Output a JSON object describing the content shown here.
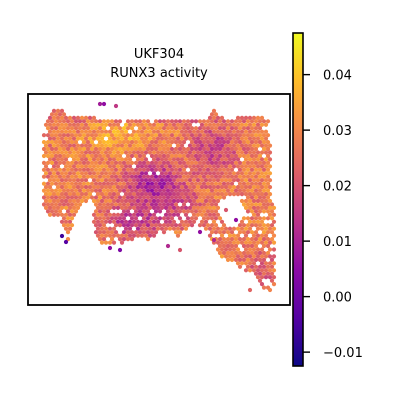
{
  "chart_data": {
    "type": "scatter",
    "title_line1": "UKF304",
    "title_line2": "RUNX3 activity",
    "xlabel": "",
    "ylabel": "",
    "colormap": "plasma",
    "grid": false,
    "colorbar": {
      "range": [
        -0.0125,
        0.0475
      ],
      "ticks": [
        -0.01,
        0.0,
        0.01,
        0.02,
        0.03,
        0.04
      ],
      "tick_labels": [
        "−0.01",
        "0.00",
        "0.01",
        "0.02",
        "0.03",
        "0.04"
      ]
    }
  },
  "colors": {
    "plasma": [
      "#0d0887",
      "#5402a3",
      "#8b0aa5",
      "#b93289",
      "#db5c68",
      "#f48849",
      "#febd2a",
      "#f0f921"
    ]
  }
}
